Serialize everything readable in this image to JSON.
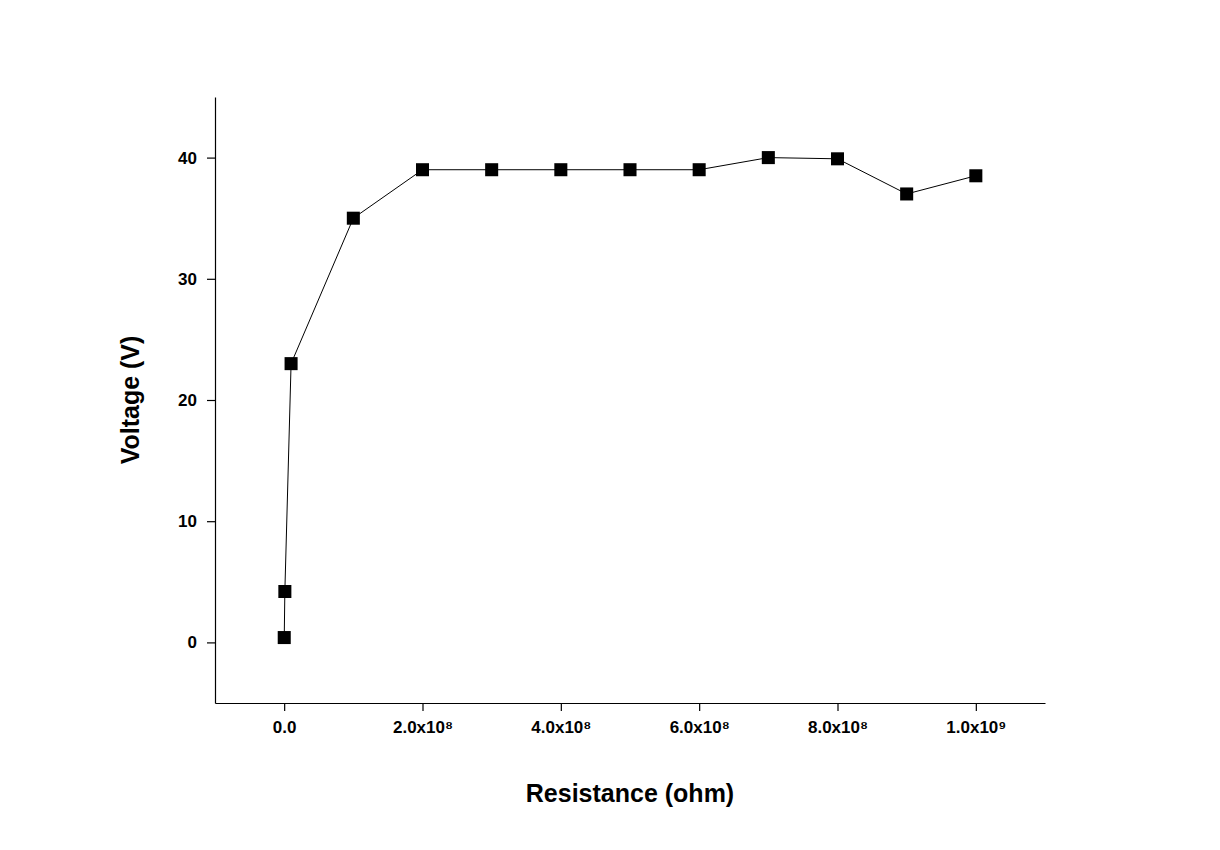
{
  "chart_data": {
    "type": "line",
    "xlabel": "Resistance (ohm)",
    "ylabel": "Voltage (V)",
    "x": [
      100000,
      1000000,
      10000000,
      100000000,
      200000000,
      300000000,
      400000000,
      500000000,
      600000000,
      700000000,
      800000000,
      900000000,
      1000000000
    ],
    "values": [
      0.4,
      4.2,
      23,
      35,
      39,
      39,
      39,
      39,
      39,
      40,
      39.9,
      37,
      38.5
    ],
    "color": "#000000",
    "marker": "square",
    "line_style": "solid",
    "grid": false,
    "xlim": [
      -100000000,
      1100000000
    ],
    "ylim": [
      -5,
      45
    ],
    "xticks": [
      {
        "value": 0,
        "label": "0.0"
      },
      {
        "value": 200000000,
        "label": "2.0x10⁸"
      },
      {
        "value": 400000000,
        "label": "4.0x10⁸"
      },
      {
        "value": 600000000,
        "label": "6.0x10⁸"
      },
      {
        "value": 800000000,
        "label": "8.0x10⁸"
      },
      {
        "value": 1000000000,
        "label": "1.0x10⁹"
      }
    ],
    "yticks": [
      0,
      10,
      20,
      30,
      40
    ]
  }
}
